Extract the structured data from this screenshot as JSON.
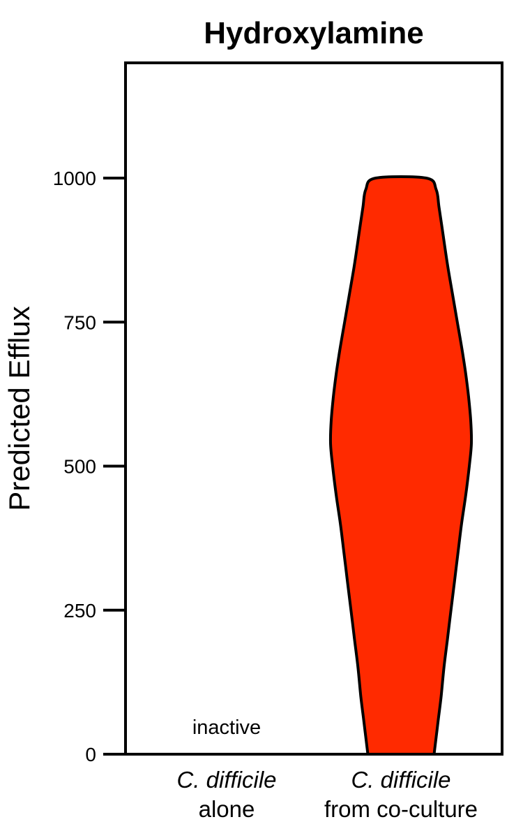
{
  "chart_data": {
    "type": "violin",
    "title": "Hydroxylamine",
    "ylabel": "Predicted Efflux",
    "xlabel": "",
    "ylim": [
      0,
      1200
    ],
    "yticks": [
      0,
      250,
      500,
      750,
      1000
    ],
    "grid": false,
    "categories": [
      {
        "line1": "C. difficile",
        "line2": "alone"
      },
      {
        "line1": "C. difficile",
        "line2": "from co-culture"
      }
    ],
    "series": [
      {
        "category_index": 0,
        "status": "inactive",
        "min": 0,
        "max": 0
      },
      {
        "category_index": 1,
        "color": "#ff2a00",
        "min": 0,
        "max": 1000,
        "density": [
          {
            "y": 0,
            "w": 0.47
          },
          {
            "y": 30,
            "w": 0.5
          },
          {
            "y": 60,
            "w": 0.53
          },
          {
            "y": 100,
            "w": 0.57
          },
          {
            "y": 150,
            "w": 0.61
          },
          {
            "y": 200,
            "w": 0.66
          },
          {
            "y": 250,
            "w": 0.71
          },
          {
            "y": 300,
            "w": 0.76
          },
          {
            "y": 350,
            "w": 0.81
          },
          {
            "y": 400,
            "w": 0.86
          },
          {
            "y": 450,
            "w": 0.92
          },
          {
            "y": 500,
            "w": 0.97
          },
          {
            "y": 540,
            "w": 1.0
          },
          {
            "y": 580,
            "w": 0.99
          },
          {
            "y": 620,
            "w": 0.96
          },
          {
            "y": 660,
            "w": 0.92
          },
          {
            "y": 700,
            "w": 0.87
          },
          {
            "y": 750,
            "w": 0.8
          },
          {
            "y": 800,
            "w": 0.73
          },
          {
            "y": 850,
            "w": 0.66
          },
          {
            "y": 900,
            "w": 0.6
          },
          {
            "y": 950,
            "w": 0.54
          },
          {
            "y": 980,
            "w": 0.5
          },
          {
            "y": 1000,
            "w": 0.36
          }
        ]
      }
    ]
  }
}
